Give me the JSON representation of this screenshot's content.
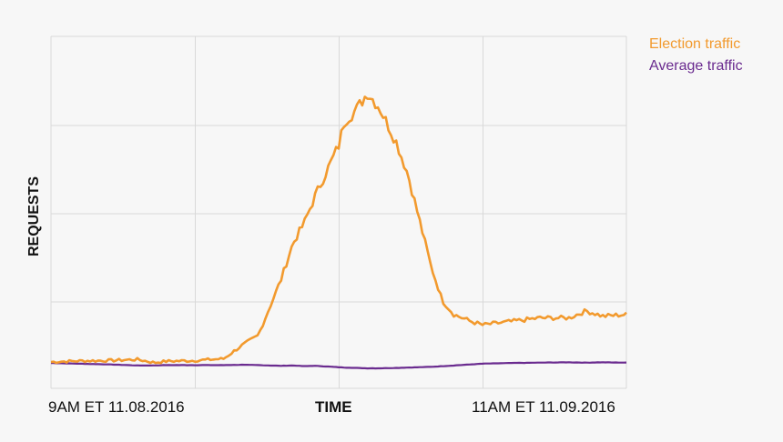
{
  "legend": {
    "election_label": "Election traffic",
    "average_label": "Average traffic"
  },
  "colors": {
    "election": "#f29a2e",
    "average": "#6a2b8f",
    "grid": "#d9d9d9",
    "plot_bg": "#f7f7f7"
  },
  "axes": {
    "xlabel": "TIME",
    "ylabel": "REQUESTS",
    "xtick_start": "9AM ET 11.08.2016",
    "xtick_end": "11AM ET 11.09.2016"
  },
  "chart_data": {
    "type": "line",
    "title": "",
    "xlabel": "TIME",
    "ylabel": "REQUESTS",
    "x_tick_labels": [
      "9AM ET 11.08.2016",
      "11AM ET 11.09.2016"
    ],
    "y_tick_labels": [],
    "grid": true,
    "legend_position": "top-right, outside plot",
    "x_range_fraction": [
      0,
      1
    ],
    "y_range_relative": [
      0,
      100
    ],
    "note": "Unlabeled y-axis; values are relative (0 = plot bottom, 100 = plot top). x is fraction of time span.",
    "x": [
      0.0,
      0.05,
      0.1,
      0.15,
      0.18,
      0.2,
      0.25,
      0.3,
      0.33,
      0.36,
      0.38,
      0.4,
      0.42,
      0.44,
      0.46,
      0.48,
      0.5,
      0.51,
      0.53,
      0.55,
      0.57,
      0.6,
      0.62,
      0.64,
      0.66,
      0.68,
      0.7,
      0.73,
      0.75,
      0.8,
      0.85,
      0.9,
      0.93,
      0.96,
      1.0
    ],
    "series": [
      {
        "name": "Election traffic",
        "color": "#f29a2e",
        "values": [
          7.5,
          7.8,
          7.9,
          8.2,
          7.3,
          7.7,
          7.9,
          8.4,
          12,
          15,
          23,
          31,
          41,
          47,
          55,
          62,
          69,
          76,
          79,
          84,
          80,
          70,
          61,
          48,
          35,
          25,
          21,
          19,
          18,
          19,
          20,
          20,
          22,
          20.5,
          21
        ]
      },
      {
        "name": "Average traffic",
        "color": "#6a2b8f",
        "values": [
          7.2,
          7.0,
          6.8,
          6.5,
          6.5,
          6.6,
          6.6,
          6.6,
          6.7,
          6.6,
          6.5,
          6.4,
          6.5,
          6.3,
          6.4,
          6.2,
          6.0,
          5.9,
          5.8,
          5.7,
          5.7,
          5.8,
          5.9,
          6.0,
          6.1,
          6.3,
          6.5,
          6.8,
          7.0,
          7.2,
          7.3,
          7.4,
          7.3,
          7.4,
          7.3
        ]
      }
    ]
  }
}
